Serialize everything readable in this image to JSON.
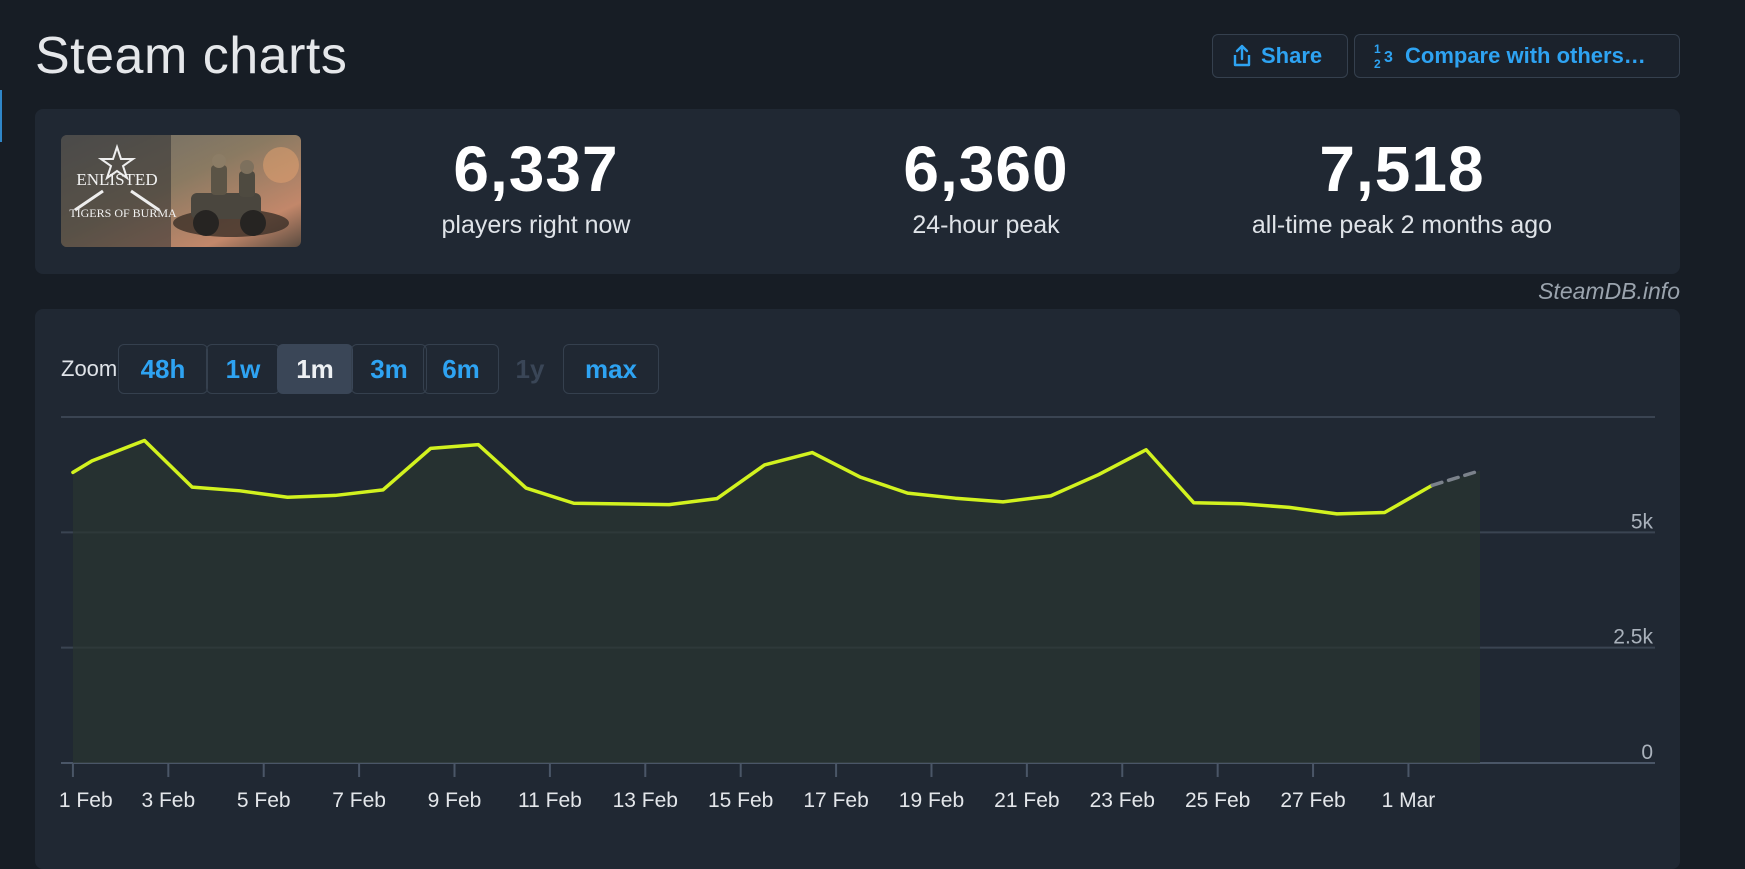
{
  "page": {
    "title": "Steam charts"
  },
  "actions": {
    "share_label": "Share",
    "share_icon": "share-icon",
    "compare_label": "Compare with others…",
    "compare_icon": "ordinal-numbers-icon"
  },
  "summary": {
    "game_logo_text": "ENLISTED",
    "game_subtitle_text": "TIGERS OF BURMA",
    "stats": [
      {
        "value": "6,337",
        "label": "players right now"
      },
      {
        "value": "6,360",
        "label": "24-hour peak"
      },
      {
        "value": "7,518",
        "label": "all-time peak 2 months ago"
      }
    ]
  },
  "credit": "SteamDB.info",
  "zoom": {
    "label": "Zoom",
    "options": [
      {
        "label": "48h",
        "state": "normal"
      },
      {
        "label": "1w",
        "state": "normal"
      },
      {
        "label": "1m",
        "state": "active"
      },
      {
        "label": "3m",
        "state": "normal"
      },
      {
        "label": "6m",
        "state": "normal"
      },
      {
        "label": "1y",
        "state": "disabled"
      },
      {
        "label": "max",
        "state": "normal"
      }
    ]
  },
  "chart_data": {
    "type": "line",
    "title": "",
    "xlabel": "",
    "ylabel": "",
    "ylim": [
      0,
      7500
    ],
    "y_ticks": [
      {
        "value": 0,
        "label": "0"
      },
      {
        "value": 2500,
        "label": "2.5k"
      },
      {
        "value": 5000,
        "label": "5k"
      },
      {
        "value": 7500,
        "label": ""
      }
    ],
    "x_ticks": [
      "1 Feb",
      "3 Feb",
      "5 Feb",
      "7 Feb",
      "9 Feb",
      "11 Feb",
      "13 Feb",
      "15 Feb",
      "17 Feb",
      "19 Feb",
      "21 Feb",
      "23 Feb",
      "25 Feb",
      "27 Feb",
      "1 Mar"
    ],
    "x_range": [
      -0.25,
      29.5
    ],
    "series": [
      {
        "color": "#d2f21f",
        "points": [
          [
            0,
            6300
          ],
          [
            0.4,
            6550
          ],
          [
            1.5,
            6990
          ],
          [
            2.5,
            5980
          ],
          [
            3.5,
            5900
          ],
          [
            4.5,
            5760
          ],
          [
            5.5,
            5800
          ],
          [
            6.5,
            5920
          ],
          [
            7.5,
            6820
          ],
          [
            8.5,
            6900
          ],
          [
            9.5,
            5960
          ],
          [
            10.5,
            5630
          ],
          [
            12.5,
            5600
          ],
          [
            13.5,
            5730
          ],
          [
            14.5,
            6460
          ],
          [
            15.5,
            6730
          ],
          [
            16.5,
            6200
          ],
          [
            17.5,
            5850
          ],
          [
            18.5,
            5740
          ],
          [
            19.5,
            5660
          ],
          [
            20.5,
            5790
          ],
          [
            21.5,
            6250
          ],
          [
            22.5,
            6790
          ],
          [
            23.5,
            5640
          ],
          [
            24.5,
            5620
          ],
          [
            25.5,
            5540
          ],
          [
            26.5,
            5400
          ],
          [
            27.5,
            5430
          ],
          [
            28.5,
            6020
          ]
        ]
      },
      {
        "color": "#7b828b",
        "dashed": true,
        "points": [
          [
            28.5,
            6020
          ],
          [
            29.5,
            6337
          ]
        ]
      }
    ],
    "grid": true,
    "legend": "none"
  }
}
